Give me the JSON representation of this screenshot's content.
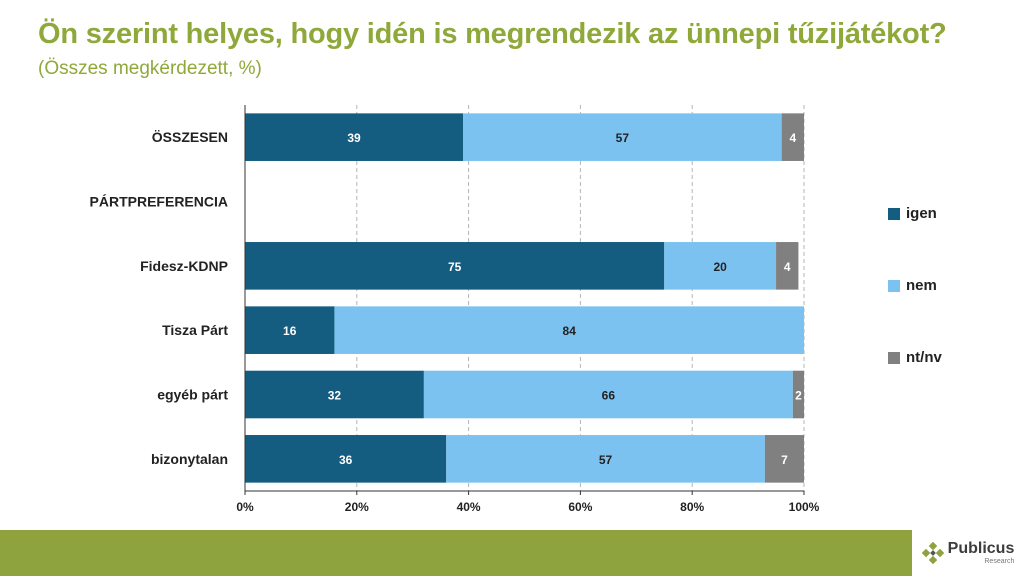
{
  "title": "Ön szerint helyes, hogy idén is megrendezik az ünnepi tűzijátékot?",
  "subtitle": "(Összes megkérdezett, %)",
  "chart_data": {
    "type": "bar",
    "orientation": "horizontal",
    "stacked": true,
    "categories": [
      "ÖSSZESEN",
      "PÁRTPREFERENCIA",
      "Fidesz-KDNP",
      "Tisza Párt",
      "egyéb párt",
      "bizonytalan"
    ],
    "series": [
      {
        "name": "igen",
        "color": "#145c80",
        "values": [
          39,
          null,
          75,
          16,
          32,
          36
        ]
      },
      {
        "name": "nem",
        "color": "#7cc2f0",
        "values": [
          57,
          null,
          20,
          84,
          66,
          57
        ]
      },
      {
        "name": "nt/nv",
        "color": "#808080",
        "values": [
          4,
          null,
          4,
          null,
          2,
          7
        ]
      }
    ],
    "xlim": [
      0,
      100
    ],
    "xticks": [
      "0%",
      "20%",
      "40%",
      "60%",
      "80%",
      "100%"
    ],
    "grid": "vertical dashed",
    "legend_position": "right"
  },
  "legend": [
    {
      "label": "igen",
      "color": "#145c80"
    },
    {
      "label": "nem",
      "color": "#7cc2f0"
    },
    {
      "label": "nt/nv",
      "color": "#808080"
    }
  ],
  "logo": {
    "name": "Publicus",
    "sub": "Research"
  }
}
